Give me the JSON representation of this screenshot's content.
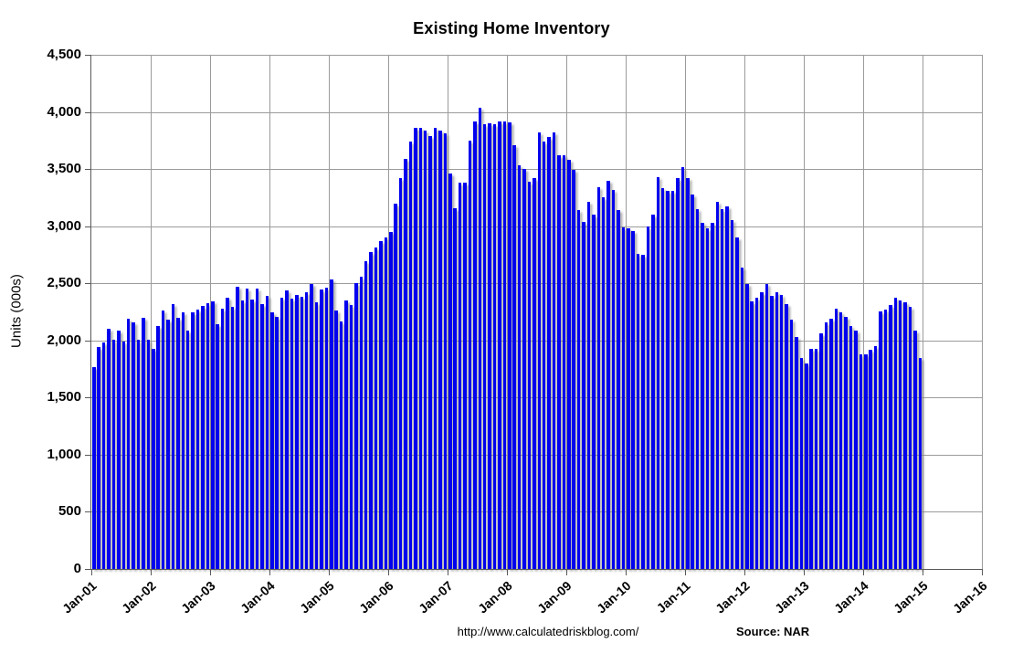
{
  "chart_data": {
    "type": "bar",
    "title": "Existing Home Inventory",
    "ylabel": "Units (000s)",
    "ylim": [
      0,
      4500
    ],
    "y_tick_step": 500,
    "y_tick_labels": [
      "0",
      "500",
      "1,000",
      "1,500",
      "2,000",
      "2,500",
      "3,000",
      "3,500",
      "4,000",
      "4,500"
    ],
    "x_tick_labels": [
      "Jan-01",
      "Jan-02",
      "Jan-03",
      "Jan-04",
      "Jan-05",
      "Jan-06",
      "Jan-07",
      "Jan-08",
      "Jan-09",
      "Jan-10",
      "Jan-11",
      "Jan-12",
      "Jan-13",
      "Jan-14",
      "Jan-15",
      "Jan-16"
    ],
    "grid": true,
    "legend": "none",
    "start_month": "Jan-01",
    "frequency": "monthly",
    "series": [
      {
        "name": "Existing Home Inventory (000s)",
        "values": [
          1770,
          1940,
          1980,
          2100,
          2010,
          2090,
          1990,
          2190,
          2160,
          2010,
          2195,
          2005,
          1925,
          2125,
          2260,
          2180,
          2320,
          2200,
          2245,
          2090,
          2250,
          2270,
          2305,
          2325,
          2340,
          2140,
          2280,
          2370,
          2290,
          2470,
          2350,
          2450,
          2355,
          2455,
          2320,
          2390,
          2250,
          2210,
          2375,
          2435,
          2365,
          2400,
          2380,
          2420,
          2490,
          2330,
          2445,
          2460,
          2530,
          2260,
          2170,
          2350,
          2310,
          2500,
          2560,
          2690,
          2770,
          2810,
          2870,
          2900,
          2950,
          3200,
          3420,
          3590,
          3740,
          3860,
          3860,
          3835,
          3790,
          3860,
          3835,
          3810,
          3460,
          3160,
          3380,
          3380,
          3750,
          3920,
          4040,
          3890,
          3900,
          3890,
          3920,
          3920,
          3910,
          3710,
          3530,
          3500,
          3390,
          3420,
          3820,
          3740,
          3780,
          3820,
          3620,
          3620,
          3580,
          3490,
          3140,
          3040,
          3210,
          3100,
          3340,
          3250,
          3400,
          3320,
          3140,
          2990,
          2980,
          2960,
          2760,
          2750,
          3000,
          3100,
          3430,
          3330,
          3310,
          3310,
          3420,
          3520,
          3420,
          3280,
          3150,
          3030,
          2980,
          3030,
          3210,
          3150,
          3170,
          3050,
          2900,
          2640,
          2490,
          2340,
          2370,
          2420,
          2490,
          2390,
          2420,
          2400,
          2320,
          2180,
          2030,
          1850,
          1800,
          1930,
          1930,
          2060,
          2160,
          2190,
          2280,
          2250,
          2210,
          2130,
          2090,
          1880,
          1880,
          1915,
          1950,
          2255,
          2270,
          2310,
          2370,
          2350,
          2335,
          2290,
          2090,
          1850
        ]
      }
    ],
    "colors": {
      "bar": "#0202EE",
      "grid": "#9B9B9B",
      "axis": "#595959",
      "background": "#FFFFFF",
      "text": "#000000"
    }
  },
  "footer": {
    "url": "http://www.calculatedriskblog.com/",
    "source": "Source: NAR"
  }
}
